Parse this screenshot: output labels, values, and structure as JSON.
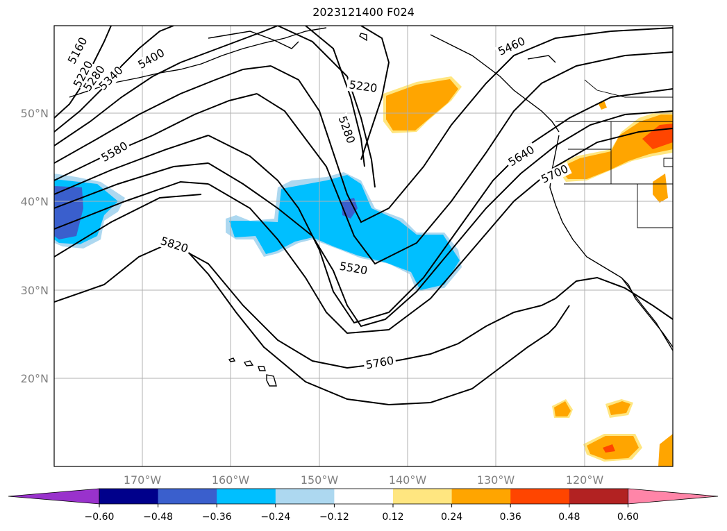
{
  "title": "2023121400 F024",
  "map": {
    "lat_labels": [
      "50°N",
      "40°N",
      "30°N",
      "20°N"
    ],
    "lon_labels": [
      "170°W",
      "160°W",
      "150°W",
      "140°W",
      "130°W",
      "120°W"
    ],
    "contour_labels": [
      "5160",
      "5220",
      "5280",
      "5340",
      "5400",
      "5220",
      "5280",
      "5460",
      "5580",
      "5640",
      "5700",
      "5820",
      "5520",
      "5760"
    ],
    "colors": {
      "land_outline": "#000000",
      "grid": "#b0b0b0",
      "contour": "#000000"
    }
  },
  "colorbar": {
    "ticks": [
      "−0.60",
      "−0.48",
      "−0.36",
      "−0.24",
      "−0.12",
      "0.12",
      "0.24",
      "0.36",
      "0.48",
      "0.60"
    ],
    "colors": [
      "#9932cc",
      "#00008b",
      "#3a5fcd",
      "#00bfff",
      "#add8f0",
      "#ffffff",
      "#ffe680",
      "#ffa500",
      "#ff4500",
      "#b22222",
      "#ff85a8"
    ]
  }
}
